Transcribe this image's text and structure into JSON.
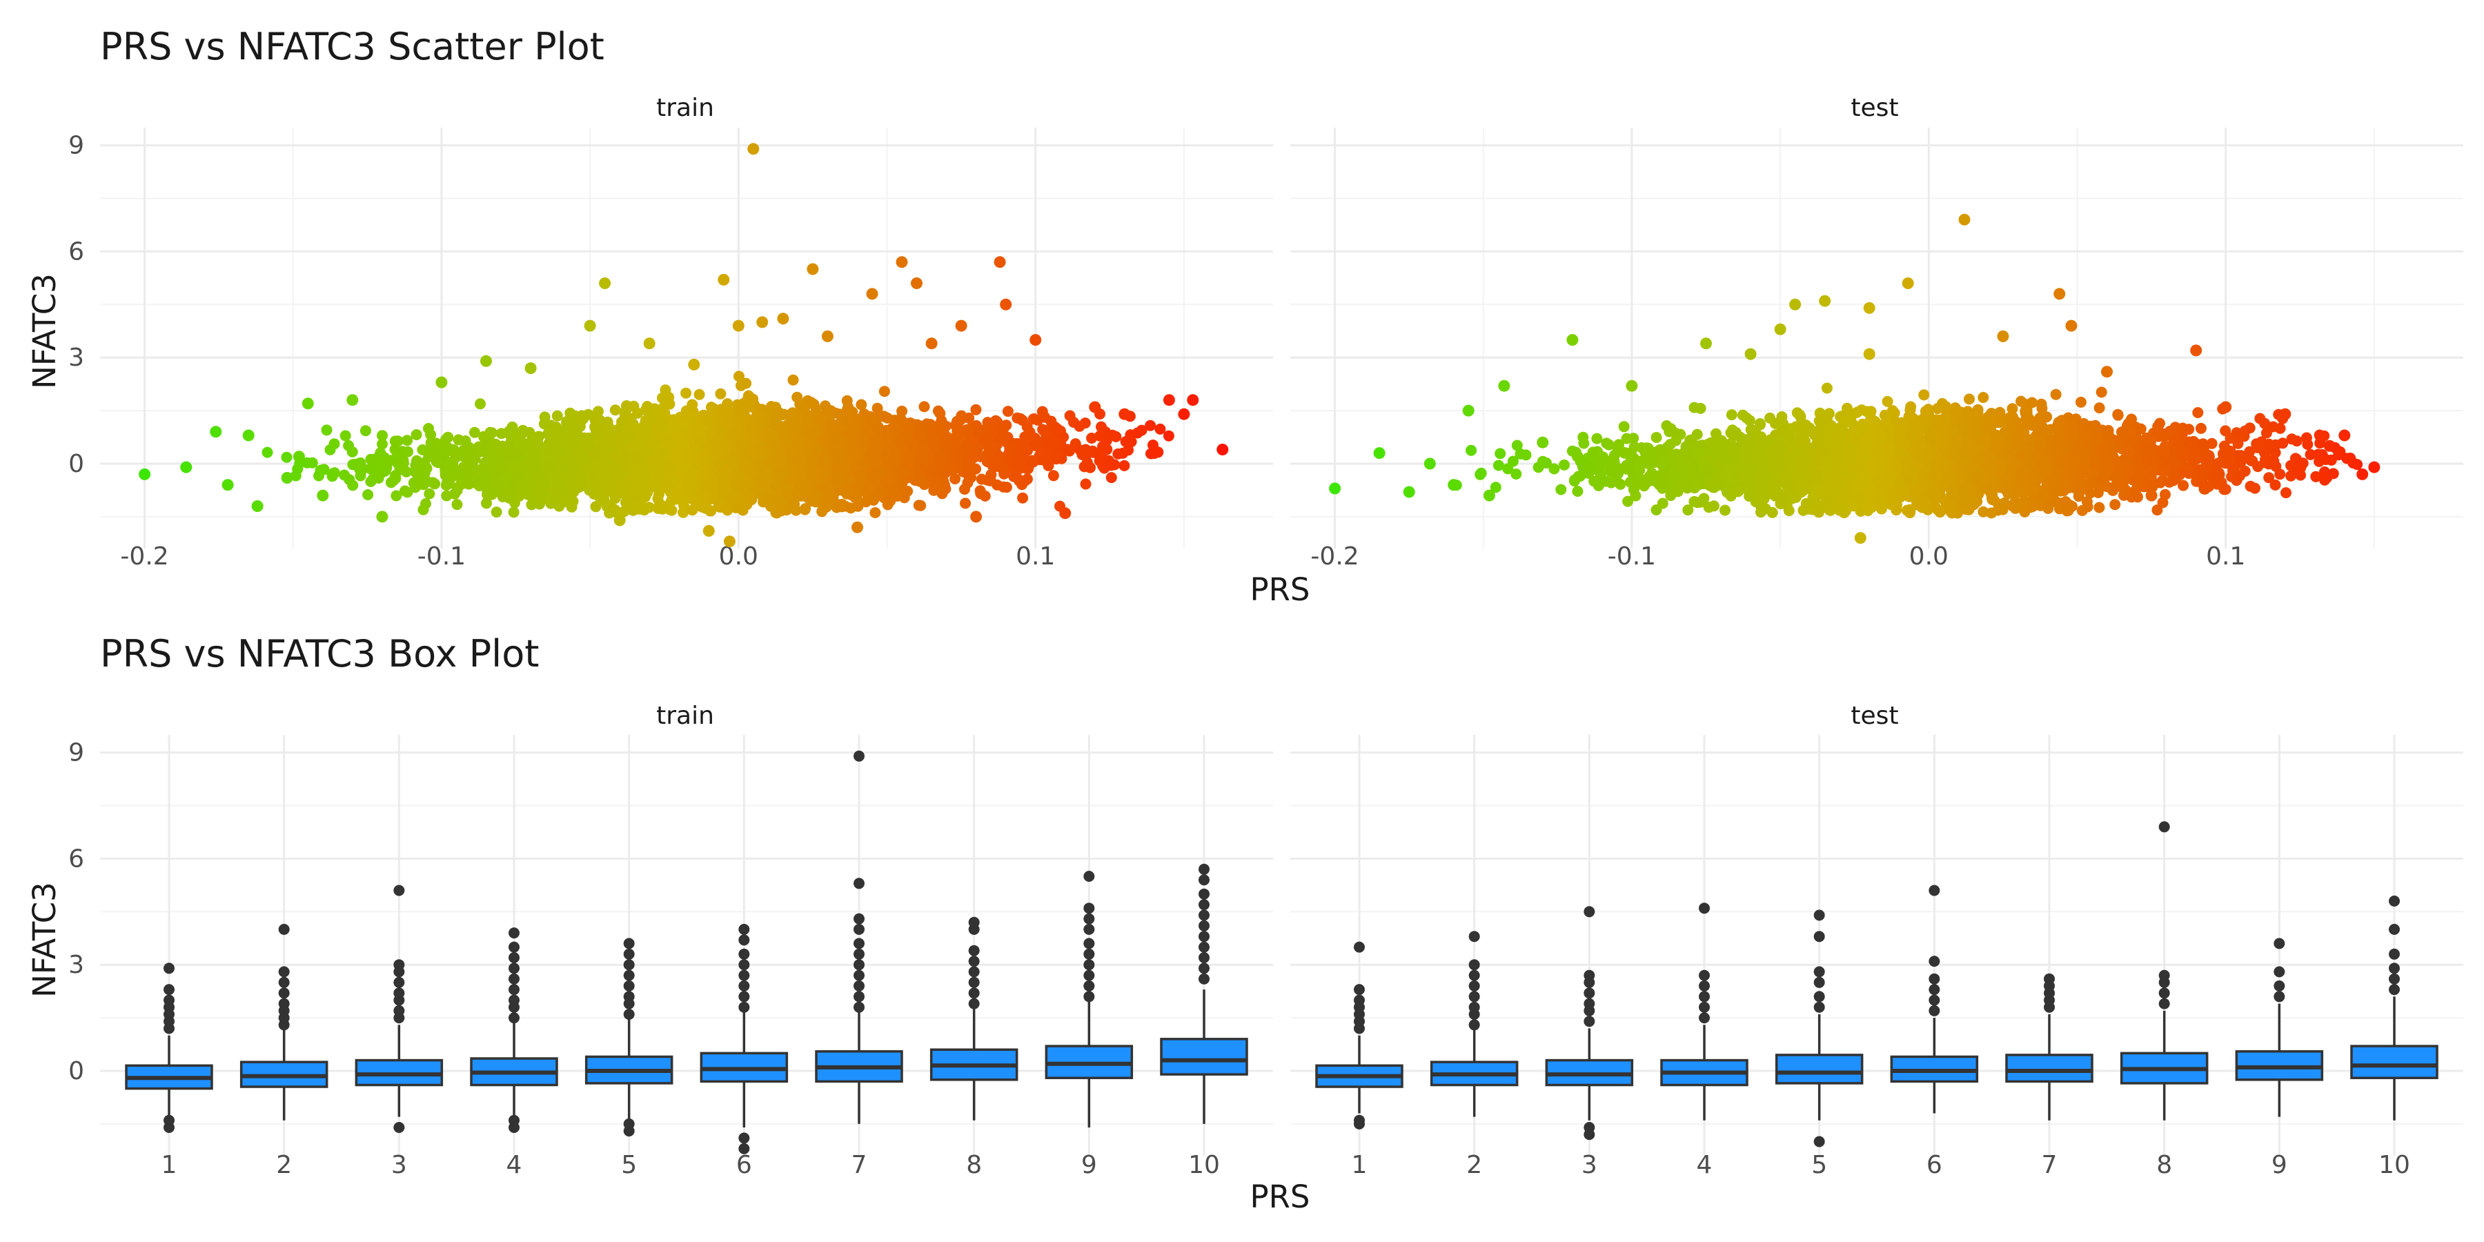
{
  "chart_data": [
    {
      "type": "scatter",
      "title": "PRS vs NFATC3 Scatter Plot",
      "xlabel": "PRS",
      "ylabel": "NFATC3",
      "facets": [
        "train",
        "test"
      ],
      "xlim": [
        -0.215,
        0.18
      ],
      "ylim": [
        -2.4,
        9.5
      ],
      "x_ticks": [
        -0.2,
        -0.1,
        0.0,
        0.1
      ],
      "x_tick_labels": [
        "-0.2",
        "-0.1",
        "0.0",
        "0.1"
      ],
      "y_ticks": [
        0,
        3,
        6,
        9
      ],
      "y_tick_labels": [
        "0",
        "3",
        "6",
        "9"
      ],
      "grid": true,
      "color_scale": {
        "low": "#00ff00",
        "high": "#ff0000",
        "mapped_to": "PRS"
      },
      "series": [
        {
          "facet": "train",
          "points": [
            [
              -0.2,
              -0.3
            ],
            [
              -0.186,
              -0.1
            ],
            [
              -0.176,
              0.9
            ],
            [
              -0.172,
              -0.6
            ],
            [
              -0.165,
              0.8
            ],
            [
              -0.162,
              -1.2
            ],
            [
              -0.152,
              -0.4
            ],
            [
              -0.148,
              0.2
            ],
            [
              -0.145,
              1.7
            ],
            [
              -0.14,
              -0.9
            ],
            [
              -0.13,
              1.8
            ],
            [
              -0.12,
              -1.5
            ],
            [
              -0.1,
              2.3
            ],
            [
              -0.085,
              2.9
            ],
            [
              -0.07,
              2.7
            ],
            [
              -0.05,
              3.9
            ],
            [
              -0.045,
              5.1
            ],
            [
              -0.04,
              -1.6
            ],
            [
              -0.03,
              3.4
            ],
            [
              -0.015,
              2.8
            ],
            [
              -0.01,
              -1.9
            ],
            [
              -0.005,
              5.2
            ],
            [
              -0.003,
              -2.2
            ],
            [
              0.0,
              3.9
            ],
            [
              0.005,
              8.9
            ],
            [
              0.008,
              4.0
            ],
            [
              0.015,
              4.1
            ],
            [
              0.025,
              5.5
            ],
            [
              0.03,
              3.6
            ],
            [
              0.04,
              -1.8
            ],
            [
              0.045,
              4.8
            ],
            [
              0.055,
              5.7
            ],
            [
              0.06,
              5.1
            ],
            [
              0.065,
              3.4
            ],
            [
              0.075,
              3.9
            ],
            [
              0.08,
              -1.5
            ],
            [
              0.088,
              5.7
            ],
            [
              0.09,
              4.5
            ],
            [
              0.1,
              3.5
            ],
            [
              0.11,
              -1.4
            ],
            [
              0.12,
              1.6
            ],
            [
              0.13,
              1.4
            ],
            [
              0.14,
              0.3
            ],
            [
              0.145,
              1.8
            ],
            [
              0.15,
              1.4
            ],
            [
              0.153,
              1.8
            ],
            [
              0.163,
              0.4
            ]
          ]
        },
        {
          "facet": "test",
          "points": [
            [
              -0.2,
              -0.7
            ],
            [
              -0.185,
              0.3
            ],
            [
              -0.175,
              -0.8
            ],
            [
              -0.168,
              0.0
            ],
            [
              -0.16,
              -0.6
            ],
            [
              -0.155,
              1.5
            ],
            [
              -0.148,
              -0.9
            ],
            [
              -0.143,
              2.2
            ],
            [
              -0.13,
              0.6
            ],
            [
              -0.12,
              3.5
            ],
            [
              -0.1,
              2.2
            ],
            [
              -0.075,
              3.4
            ],
            [
              -0.06,
              3.1
            ],
            [
              -0.05,
              3.8
            ],
            [
              -0.045,
              4.5
            ],
            [
              -0.035,
              4.6
            ],
            [
              -0.03,
              -1.3
            ],
            [
              -0.02,
              4.4
            ],
            [
              -0.02,
              3.1
            ],
            [
              -0.023,
              -2.1
            ],
            [
              -0.007,
              5.1
            ],
            [
              0.012,
              6.9
            ],
            [
              0.025,
              3.6
            ],
            [
              0.035,
              -1.2
            ],
            [
              0.044,
              4.8
            ],
            [
              0.048,
              3.9
            ],
            [
              0.06,
              2.6
            ],
            [
              0.075,
              -0.9
            ],
            [
              0.09,
              3.2
            ],
            [
              0.1,
              1.6
            ],
            [
              0.12,
              1.4
            ],
            [
              0.135,
              0.5
            ],
            [
              0.14,
              0.8
            ],
            [
              0.146,
              -0.3
            ],
            [
              0.15,
              -0.1
            ]
          ]
        }
      ]
    },
    {
      "type": "box",
      "title": "PRS vs NFATC3 Box Plot",
      "xlabel": "PRS",
      "ylabel": "NFATC3",
      "facets": [
        "train",
        "test"
      ],
      "categories": [
        "1",
        "2",
        "3",
        "4",
        "5",
        "6",
        "7",
        "8",
        "9",
        "10"
      ],
      "ylim": [
        -2.4,
        9.5
      ],
      "y_ticks": [
        0,
        3,
        6,
        9
      ],
      "y_tick_labels": [
        "0",
        "3",
        "6",
        "9"
      ],
      "grid": true,
      "box_color": "#1e90ff",
      "series": [
        {
          "facet": "train",
          "boxes": [
            {
              "q1": -0.5,
              "median": -0.2,
              "q3": 0.15,
              "lower": -1.3,
              "upper": 1.0,
              "outliers": [
                1.2,
                1.4,
                1.6,
                1.8,
                2.0,
                2.3,
                2.9,
                -1.4,
                -1.6
              ]
            },
            {
              "q1": -0.45,
              "median": -0.15,
              "q3": 0.25,
              "lower": -1.4,
              "upper": 1.2,
              "outliers": [
                1.3,
                1.5,
                1.7,
                1.9,
                2.2,
                2.5,
                2.8,
                4.0
              ]
            },
            {
              "q1": -0.4,
              "median": -0.1,
              "q3": 0.3,
              "lower": -1.3,
              "upper": 1.3,
              "outliers": [
                1.5,
                1.7,
                2.0,
                2.2,
                2.5,
                2.8,
                3.0,
                5.1,
                -1.6
              ]
            },
            {
              "q1": -0.4,
              "median": -0.05,
              "q3": 0.35,
              "lower": -1.3,
              "upper": 1.4,
              "outliers": [
                1.5,
                1.8,
                2.0,
                2.3,
                2.6,
                2.9,
                3.2,
                3.5,
                3.9,
                -1.4,
                -1.6
              ]
            },
            {
              "q1": -0.35,
              "median": 0.0,
              "q3": 0.4,
              "lower": -1.4,
              "upper": 1.5,
              "outliers": [
                1.6,
                1.9,
                2.1,
                2.4,
                2.7,
                3.0,
                3.3,
                3.6,
                -1.5,
                -1.7
              ]
            },
            {
              "q1": -0.3,
              "median": 0.05,
              "q3": 0.5,
              "lower": -1.6,
              "upper": 1.7,
              "outliers": [
                1.8,
                2.1,
                2.4,
                2.7,
                3.0,
                3.3,
                3.7,
                4.0,
                -1.9,
                -2.2
              ]
            },
            {
              "q1": -0.3,
              "median": 0.1,
              "q3": 0.55,
              "lower": -1.5,
              "upper": 1.7,
              "outliers": [
                1.8,
                2.1,
                2.4,
                2.7,
                3.0,
                3.3,
                3.6,
                4.0,
                4.3,
                5.3,
                8.9
              ]
            },
            {
              "q1": -0.25,
              "median": 0.15,
              "q3": 0.6,
              "lower": -1.4,
              "upper": 1.8,
              "outliers": [
                1.9,
                2.2,
                2.5,
                2.8,
                3.1,
                3.4,
                4.0,
                4.2
              ]
            },
            {
              "q1": -0.2,
              "median": 0.2,
              "q3": 0.7,
              "lower": -1.6,
              "upper": 2.0,
              "outliers": [
                2.1,
                2.4,
                2.7,
                3.0,
                3.3,
                3.6,
                4.0,
                4.3,
                4.6,
                5.5
              ]
            },
            {
              "q1": -0.1,
              "median": 0.3,
              "q3": 0.9,
              "lower": -1.5,
              "upper": 2.3,
              "outliers": [
                2.6,
                2.9,
                3.2,
                3.5,
                3.8,
                4.1,
                4.4,
                4.7,
                5.0,
                5.4,
                5.7
              ]
            }
          ]
        },
        {
          "facet": "test",
          "boxes": [
            {
              "q1": -0.45,
              "median": -0.15,
              "q3": 0.15,
              "lower": -1.2,
              "upper": 1.0,
              "outliers": [
                1.2,
                1.4,
                1.6,
                1.8,
                2.0,
                2.3,
                3.5,
                -1.4,
                -1.5
              ]
            },
            {
              "q1": -0.4,
              "median": -0.1,
              "q3": 0.25,
              "lower": -1.3,
              "upper": 1.2,
              "outliers": [
                1.3,
                1.6,
                1.8,
                2.1,
                2.4,
                2.7,
                3.0,
                3.8
              ]
            },
            {
              "q1": -0.4,
              "median": -0.1,
              "q3": 0.3,
              "lower": -1.4,
              "upper": 1.2,
              "outliers": [
                1.4,
                1.7,
                1.9,
                2.2,
                2.5,
                2.7,
                4.5,
                -1.6,
                -1.8
              ]
            },
            {
              "q1": -0.4,
              "median": -0.05,
              "q3": 0.3,
              "lower": -1.4,
              "upper": 1.3,
              "outliers": [
                1.5,
                1.8,
                2.1,
                2.4,
                2.7,
                4.6
              ]
            },
            {
              "q1": -0.35,
              "median": -0.05,
              "q3": 0.45,
              "lower": -1.4,
              "upper": 1.6,
              "outliers": [
                1.8,
                2.1,
                2.5,
                2.8,
                3.8,
                4.4,
                -2.0
              ]
            },
            {
              "q1": -0.3,
              "median": 0.0,
              "q3": 0.4,
              "lower": -1.2,
              "upper": 1.5,
              "outliers": [
                1.7,
                2.0,
                2.3,
                2.6,
                3.1,
                5.1
              ]
            },
            {
              "q1": -0.3,
              "median": 0.0,
              "q3": 0.45,
              "lower": -1.4,
              "upper": 1.6,
              "outliers": [
                1.8,
                2.0,
                2.2,
                2.4,
                2.6
              ]
            },
            {
              "q1": -0.35,
              "median": 0.05,
              "q3": 0.5,
              "lower": -1.4,
              "upper": 1.7,
              "outliers": [
                1.9,
                2.2,
                2.5,
                2.7,
                6.9
              ]
            },
            {
              "q1": -0.25,
              "median": 0.1,
              "q3": 0.55,
              "lower": -1.3,
              "upper": 1.9,
              "outliers": [
                2.1,
                2.4,
                2.8,
                3.6
              ]
            },
            {
              "q1": -0.2,
              "median": 0.15,
              "q3": 0.7,
              "lower": -1.4,
              "upper": 2.1,
              "outliers": [
                2.3,
                2.6,
                2.9,
                3.3,
                4.0,
                4.8
              ]
            }
          ]
        }
      ]
    }
  ]
}
